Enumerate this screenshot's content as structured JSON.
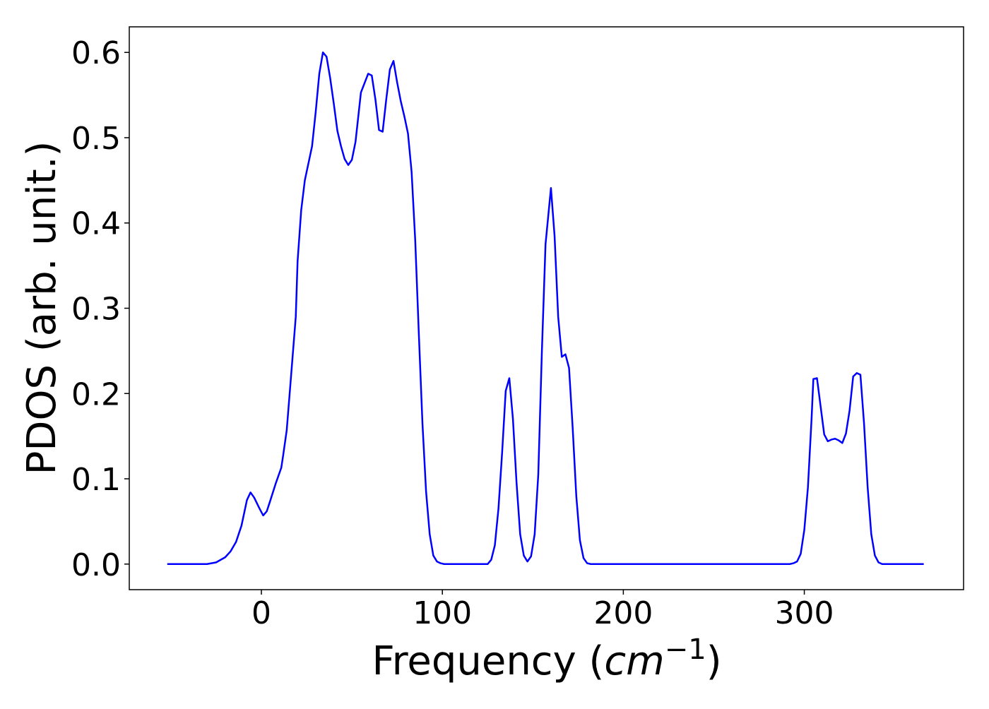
{
  "chart_data": {
    "type": "line",
    "xlabel_parts": [
      "Frequency (",
      "cm",
      "−1",
      ")"
    ],
    "ylabel": "PDOS (arb. unit.)",
    "color": "#0000ff",
    "x": [
      -52,
      -30,
      -25,
      -20,
      -17,
      -14,
      -11,
      -8,
      -6,
      -4,
      -1,
      1,
      3,
      5,
      8,
      11,
      12,
      14,
      16,
      19,
      20,
      22,
      24,
      26,
      28,
      30,
      32,
      34,
      36,
      38,
      40,
      42,
      44,
      46,
      48,
      50,
      52,
      55,
      59,
      61,
      63,
      65,
      67,
      69,
      71,
      73,
      75,
      77,
      79,
      81,
      83,
      85,
      87,
      89,
      91,
      93,
      95,
      97,
      99,
      101,
      125,
      127,
      129,
      131,
      133,
      135,
      137,
      139,
      141,
      143,
      145,
      147,
      149,
      151,
      153,
      155,
      157,
      160,
      162,
      164,
      166,
      168,
      170,
      172,
      174,
      176,
      178,
      180,
      182,
      292,
      294,
      296,
      298,
      300,
      302,
      304,
      305,
      307,
      309,
      311,
      313,
      315,
      317,
      319,
      321,
      323,
      325,
      327,
      329,
      331,
      333,
      335,
      337,
      339,
      341,
      343,
      366
    ],
    "values": [
      0,
      0,
      0.002,
      0.008,
      0.015,
      0.026,
      0.045,
      0.075,
      0.084,
      0.078,
      0.065,
      0.057,
      0.062,
      0.075,
      0.095,
      0.113,
      0.127,
      0.157,
      0.21,
      0.29,
      0.355,
      0.415,
      0.45,
      0.47,
      0.49,
      0.53,
      0.575,
      0.6,
      0.595,
      0.57,
      0.54,
      0.508,
      0.49,
      0.475,
      0.468,
      0.474,
      0.495,
      0.553,
      0.575,
      0.573,
      0.545,
      0.509,
      0.507,
      0.545,
      0.58,
      0.59,
      0.565,
      0.543,
      0.525,
      0.505,
      0.46,
      0.38,
      0.27,
      0.165,
      0.085,
      0.035,
      0.01,
      0.003,
      0.001,
      0,
      0,
      0.005,
      0.022,
      0.065,
      0.13,
      0.203,
      0.218,
      0.17,
      0.095,
      0.035,
      0.01,
      0.003,
      0.009,
      0.035,
      0.105,
      0.25,
      0.375,
      0.441,
      0.385,
      0.29,
      0.243,
      0.246,
      0.23,
      0.16,
      0.08,
      0.028,
      0.007,
      0.001,
      0,
      0,
      0.001,
      0.003,
      0.012,
      0.04,
      0.09,
      0.17,
      0.217,
      0.218,
      0.185,
      0.152,
      0.144,
      0.146,
      0.147,
      0.145,
      0.142,
      0.153,
      0.18,
      0.22,
      0.224,
      0.222,
      0.165,
      0.09,
      0.035,
      0.01,
      0.002,
      0,
      0
    ],
    "xlim": [
      -73,
      388
    ],
    "ylim": [
      -0.03,
      0.63
    ],
    "xticks": [
      0,
      100,
      200,
      300
    ],
    "yticks": [
      {
        "value": 0,
        "label": "0.0"
      },
      0.1,
      0.2,
      0.3,
      0.4,
      0.5,
      0.6
    ]
  }
}
